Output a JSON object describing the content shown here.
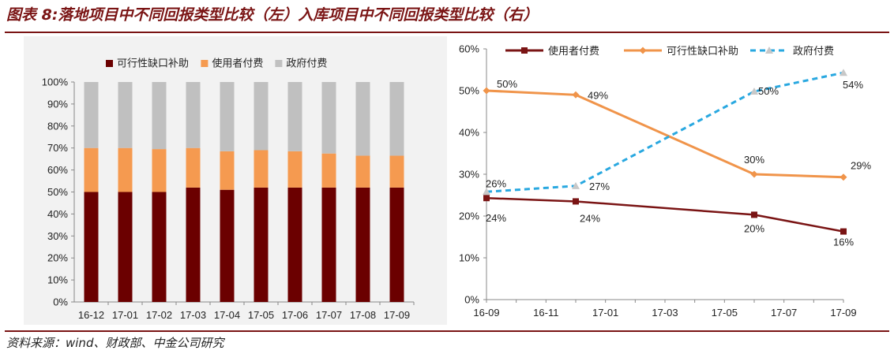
{
  "title": "图表 8:落地项目中不同回报类型比较（左）入库项目中不同回报类型比较（右）",
  "source": "资料来源：wind、财政部、中金公司研究",
  "chart_data": [
    {
      "type": "bar",
      "stacked": true,
      "categories": [
        "16-12",
        "17-01",
        "17-02",
        "17-03",
        "17-04",
        "17-05",
        "17-06",
        "17-07",
        "17-08",
        "17-09"
      ],
      "series": [
        {
          "name": "可行性缺口补助",
          "color": "#6b0000",
          "values": [
            50,
            50,
            50,
            52,
            51,
            52,
            52,
            52,
            52,
            52
          ]
        },
        {
          "name": "使用者付费",
          "color": "#f59a50",
          "values": [
            20,
            20,
            19.5,
            18,
            17.5,
            17,
            16.5,
            15.5,
            14.5,
            14.5
          ]
        },
        {
          "name": "政府付费",
          "color": "#c0c0c0",
          "values": [
            30,
            30,
            30.5,
            30,
            31.5,
            31,
            31.5,
            32.5,
            33.5,
            33.5
          ]
        }
      ],
      "yticks": [
        "0%",
        "10%",
        "20%",
        "30%",
        "40%",
        "50%",
        "60%",
        "70%",
        "80%",
        "90%",
        "100%"
      ],
      "ylim": [
        0,
        100
      ],
      "legend": "top"
    },
    {
      "type": "line",
      "xticks": [
        "16-09",
        "16-11",
        "17-01",
        "17-03",
        "17-05",
        "17-07",
        "17-09"
      ],
      "yticks": [
        "0%",
        "10%",
        "20%",
        "30%",
        "40%",
        "50%",
        "60%"
      ],
      "ylim": [
        0,
        60
      ],
      "series": [
        {
          "name": "使用者付费",
          "color": "#7a1414",
          "x": [
            "16-09",
            "16-12",
            "17-06",
            "17-09"
          ],
          "values": [
            24.3,
            23.5,
            20.3,
            16.3
          ],
          "labels": [
            "24%",
            "24%",
            "20%",
            "16%"
          ]
        },
        {
          "name": "可行性缺口补助",
          "color": "#f0944a",
          "x": [
            "16-09",
            "16-12",
            "17-06",
            "17-09"
          ],
          "values": [
            50,
            49,
            30,
            29.3
          ],
          "labels": [
            "50%",
            "49%",
            "30%",
            "29%"
          ]
        },
        {
          "name": "政府付费",
          "color": "#29a8e0",
          "x": [
            "16-09",
            "16-12",
            "17-06",
            "17-09"
          ],
          "values": [
            25.8,
            27.2,
            49.8,
            54.3
          ],
          "labels": [
            "26%",
            "27%",
            "50%",
            "54%"
          ]
        }
      ],
      "legend": "top"
    }
  ]
}
